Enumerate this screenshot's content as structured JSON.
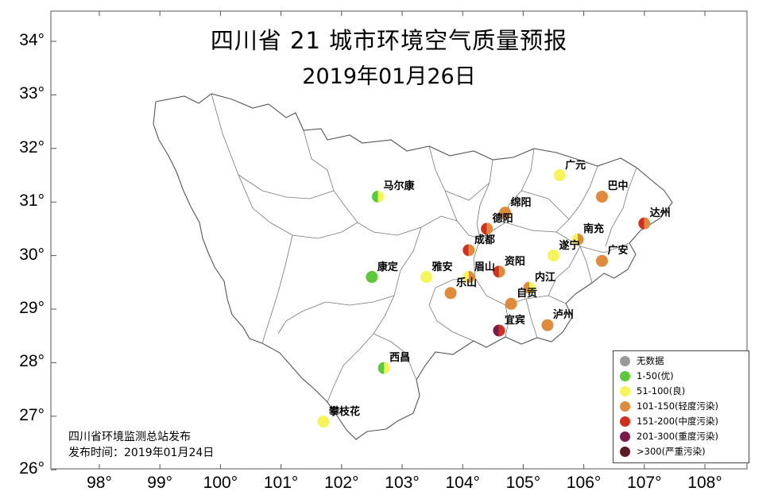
{
  "title": "四川省 21 城市环境空气质量预报",
  "date": "2019年01月26日",
  "axes": {
    "lat_labels": [
      "34°",
      "33°",
      "32°",
      "31°",
      "30°",
      "29°",
      "28°",
      "27°",
      "26°"
    ],
    "lon_labels": [
      "98°",
      "99°",
      "100°",
      "101°",
      "102°",
      "103°",
      "104°",
      "105°",
      "106°",
      "107°",
      "108°"
    ]
  },
  "colors": {
    "no_data": "#999999",
    "good": "#5cc93a",
    "moderate": "#f7f45a",
    "light": "#e08a3c",
    "medium": "#d2301f",
    "heavy": "#7a1a4a",
    "severe": "#5b1a22"
  },
  "cities": [
    {
      "name": "广元",
      "lon": 105.6,
      "lat": 31.5,
      "aqi": "moderate"
    },
    {
      "name": "巴中",
      "lon": 106.3,
      "lat": 31.1,
      "aqi": "light"
    },
    {
      "name": "马尔康",
      "lon": 102.6,
      "lat": 31.1,
      "aqi": "good",
      "aqi2": "moderate"
    },
    {
      "name": "绵阳",
      "lon": 104.7,
      "lat": 30.8,
      "aqi": "light"
    },
    {
      "name": "德阳",
      "lon": 104.4,
      "lat": 30.5,
      "aqi": "medium",
      "aqi2": "light"
    },
    {
      "name": "达州",
      "lon": 107.0,
      "lat": 30.6,
      "aqi": "medium",
      "aqi2": "light"
    },
    {
      "name": "南充",
      "lon": 105.9,
      "lat": 30.3,
      "aqi": "moderate",
      "aqi2": "light"
    },
    {
      "name": "成都",
      "lon": 104.1,
      "lat": 30.1,
      "aqi": "medium",
      "aqi2": "light"
    },
    {
      "name": "遂宁",
      "lon": 105.5,
      "lat": 30.0,
      "aqi": "moderate"
    },
    {
      "name": "广安",
      "lon": 106.3,
      "lat": 29.9,
      "aqi": "light"
    },
    {
      "name": "康定",
      "lon": 102.5,
      "lat": 29.6,
      "aqi": "good"
    },
    {
      "name": "雅安",
      "lon": 103.4,
      "lat": 29.6,
      "aqi": "moderate"
    },
    {
      "name": "眉山",
      "lon": 104.1,
      "lat": 29.6,
      "aqi": "moderate",
      "aqi2": "light"
    },
    {
      "name": "资阳",
      "lon": 104.6,
      "lat": 29.7,
      "aqi": "medium",
      "aqi2": "light"
    },
    {
      "name": "乐山",
      "lon": 103.8,
      "lat": 29.3,
      "aqi": "light"
    },
    {
      "name": "内江",
      "lon": 105.1,
      "lat": 29.4,
      "aqi": "light",
      "aqi2": "moderate"
    },
    {
      "name": "自贡",
      "lon": 104.8,
      "lat": 29.1,
      "aqi": "light"
    },
    {
      "name": "泸州",
      "lon": 105.4,
      "lat": 28.7,
      "aqi": "light"
    },
    {
      "name": "宜宾",
      "lon": 104.6,
      "lat": 28.6,
      "aqi": "heavy",
      "aqi2": "medium"
    },
    {
      "name": "西昌",
      "lon": 102.7,
      "lat": 27.9,
      "aqi": "good",
      "aqi2": "moderate"
    },
    {
      "name": "攀枝花",
      "lon": 101.7,
      "lat": 26.9,
      "aqi": "moderate"
    }
  ],
  "legend": [
    {
      "label": "无数据",
      "color": "#999999"
    },
    {
      "label": "1-50(优)",
      "color": "#5cc93a"
    },
    {
      "label": "51-100(良)",
      "color": "#f7f45a"
    },
    {
      "label": "101-150(轻度污染)",
      "color": "#e08a3c"
    },
    {
      "label": "151-200(中度污染)",
      "color": "#d2301f"
    },
    {
      "label": "201-300(重度污染)",
      "color": "#7a1a4a"
    },
    {
      "label": ">300(严重污染)",
      "color": "#5b1a22"
    }
  ],
  "footer": {
    "publisher": "四川省环境监测总站发布",
    "publish_time": "发布时间：2019年01月24日"
  }
}
